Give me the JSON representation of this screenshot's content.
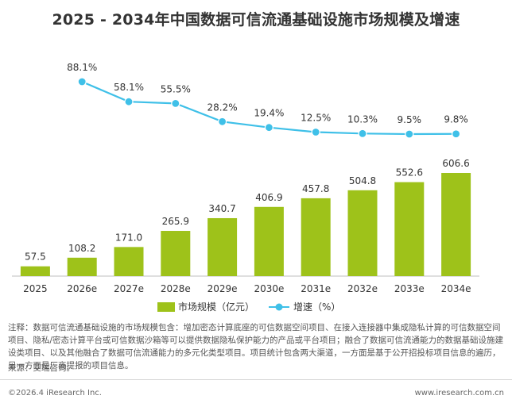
{
  "title": "2025 - 2034年中国数据可信流通基础设施市场规模及增速",
  "chart_data": {
    "type": "bar",
    "categories": [
      "2025",
      "2026e",
      "2027e",
      "2028e",
      "2029e",
      "2030e",
      "2031e",
      "2032e",
      "2033e",
      "2034e"
    ],
    "series": [
      {
        "name": "市场规模（亿元）",
        "type": "bar",
        "color": "#9ec21a",
        "values": [
          57.5,
          108.2,
          171.0,
          265.9,
          340.7,
          406.9,
          457.8,
          504.8,
          552.6,
          606.6
        ],
        "labels": [
          "57.5",
          "108.2",
          "171.0",
          "265.9",
          "340.7",
          "406.9",
          "457.8",
          "504.8",
          "552.6",
          "606.6"
        ]
      },
      {
        "name": "增速（%）",
        "type": "line",
        "color": "#3fc0e8",
        "values": [
          null,
          88.1,
          58.1,
          55.5,
          28.2,
          19.4,
          12.5,
          10.3,
          9.5,
          9.8
        ],
        "labels": [
          "",
          "88.1%",
          "58.1%",
          "55.5%",
          "28.2%",
          "19.4%",
          "12.5%",
          "10.3%",
          "9.5%",
          "9.8%"
        ]
      }
    ],
    "ylim": [
      0,
      650
    ],
    "y2lim": [
      0,
      100
    ],
    "legend": "bottom"
  },
  "note": "注释：数据可信流通基础设施的市场规模包含：增加密态计算底座的可信数据空间项目、在接入连接器中集成隐私计算的可信数据空间项目、隐私/密态计算平台或可信数据沙箱等可以提供数据隐私保护能力的产品或平台项目；融合了数据可信流通能力的数据基础设施建设类项目、以及其他融合了数据可信流通能力的多元化类型项目。项目统计包含两大渠道，一方面是基于公开招投标项目信息的遍历，另一方面是厂商提报的项目信息。",
  "source": "来源：艾瑞咨询。",
  "footer": {
    "copyright": "©2026.4 iResearch Inc.",
    "website": "www.iresearch.com.cn"
  }
}
